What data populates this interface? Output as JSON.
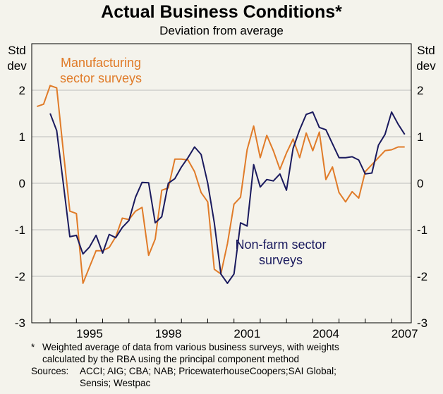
{
  "chart_data": {
    "type": "line",
    "title": "Actual Business Conditions*",
    "subtitle": "Deviation from average",
    "ylabel_left": [
      "Std",
      "dev"
    ],
    "ylabel_right": [
      "Std",
      "dev"
    ],
    "ylim": [
      -3,
      3
    ],
    "yticks": [
      2,
      1,
      0,
      -1,
      -2,
      -3
    ],
    "ytick_labels": [
      "2",
      "1",
      "0",
      "-1",
      "-2",
      "-3"
    ],
    "xlim": [
      1993.3,
      2007.75
    ],
    "xticks": [
      1995,
      1998,
      2001,
      2004,
      2007
    ],
    "xtick_labels": [
      "1995",
      "1998",
      "2001",
      "2004",
      "2007"
    ],
    "series": [
      {
        "name": "Manufacturing sector surveys",
        "label_lines": [
          "Manufacturing",
          "sector surveys"
        ],
        "color": "#e07b28",
        "x": [
          1993.5,
          1993.75,
          1994.0,
          1994.25,
          1994.5,
          1994.75,
          1995.0,
          1995.25,
          1995.5,
          1995.75,
          1996.0,
          1996.25,
          1996.5,
          1996.75,
          1997.0,
          1997.25,
          1997.5,
          1997.75,
          1998.0,
          1998.25,
          1998.5,
          1998.75,
          1999.0,
          1999.25,
          1999.5,
          1999.75,
          2000.0,
          2000.25,
          2000.5,
          2000.75,
          2001.0,
          2001.25,
          2001.5,
          2001.75,
          2002.0,
          2002.25,
          2002.5,
          2002.75,
          2003.0,
          2003.25,
          2003.5,
          2003.75,
          2004.0,
          2004.25,
          2004.5,
          2004.75,
          2005.0,
          2005.25,
          2005.5,
          2005.75,
          2006.0,
          2006.25,
          2006.5,
          2006.75,
          2007.0,
          2007.25,
          2007.5
        ],
        "values": [
          1.65,
          1.7,
          2.1,
          2.05,
          0.7,
          -0.6,
          -0.65,
          -2.15,
          -1.8,
          -1.45,
          -1.45,
          -1.38,
          -1.15,
          -0.75,
          -0.78,
          -0.6,
          -0.52,
          -1.55,
          -1.2,
          -0.15,
          -0.1,
          0.52,
          0.52,
          0.5,
          0.25,
          -0.2,
          -0.4,
          -1.85,
          -1.95,
          -1.3,
          -0.45,
          -0.3,
          0.72,
          1.23,
          0.55,
          1.03,
          0.7,
          0.3,
          0.65,
          0.95,
          0.55,
          1.08,
          0.7,
          1.1,
          0.08,
          0.35,
          -0.2,
          -0.4,
          -0.18,
          -0.32,
          0.25,
          0.4,
          0.55,
          0.7,
          0.72,
          0.78,
          0.78
        ]
      },
      {
        "name": "Non-farm sector surveys",
        "label_lines": [
          "Non-farm sector",
          "surveys"
        ],
        "color": "#1a1a5e",
        "x": [
          1994.0,
          1994.25,
          1994.5,
          1994.75,
          1995.0,
          1995.25,
          1995.5,
          1995.75,
          1996.0,
          1996.25,
          1996.5,
          1996.75,
          1997.0,
          1997.25,
          1997.5,
          1997.75,
          1998.0,
          1998.25,
          1998.5,
          1998.75,
          1999.0,
          1999.25,
          1999.5,
          1999.75,
          2000.0,
          2000.25,
          2000.5,
          2000.75,
          2001.0,
          2001.25,
          2001.5,
          2001.75,
          2002.0,
          2002.25,
          2002.5,
          2002.75,
          2003.0,
          2003.25,
          2003.5,
          2003.75,
          2004.0,
          2004.25,
          2004.5,
          2004.75,
          2005.0,
          2005.25,
          2005.5,
          2005.75,
          2006.0,
          2006.25,
          2006.5,
          2006.75,
          2007.0,
          2007.25,
          2007.5
        ],
        "values": [
          1.5,
          1.13,
          0.0,
          -1.15,
          -1.12,
          -1.52,
          -1.37,
          -1.12,
          -1.5,
          -1.1,
          -1.17,
          -0.95,
          -0.8,
          -0.3,
          0.02,
          0.01,
          -0.85,
          -0.72,
          0.0,
          0.1,
          0.35,
          0.55,
          0.78,
          0.62,
          0.0,
          -0.85,
          -1.95,
          -2.15,
          -1.95,
          -0.85,
          -0.92,
          0.4,
          -0.08,
          0.08,
          0.05,
          0.2,
          -0.15,
          0.75,
          1.15,
          1.48,
          1.53,
          1.2,
          1.15,
          0.85,
          0.55,
          0.55,
          0.57,
          0.5,
          0.2,
          0.22,
          0.82,
          1.05,
          1.53,
          1.27,
          1.05
        ]
      }
    ],
    "footnote_marker": "*",
    "footnote_lines": [
      "Weighted average of data from various business surveys, with weights",
      "calculated by the RBA using the principal component method"
    ],
    "sources_label": "Sources:",
    "sources_lines": [
      "ACCI; AIG; CBA; NAB; PricewaterhouseCoopers;SAI Global;",
      "Sensis; Westpac"
    ]
  }
}
